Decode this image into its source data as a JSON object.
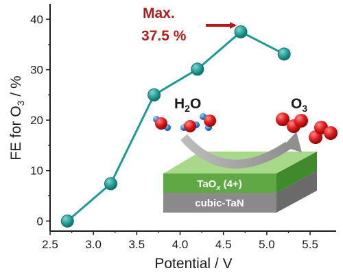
{
  "chart_data": {
    "type": "line",
    "x": [
      2.7,
      3.2,
      3.7,
      4.2,
      4.7,
      5.2
    ],
    "series": [
      {
        "values": [
          0,
          7.4,
          25,
          30.1,
          37.5,
          33.1
        ]
      }
    ],
    "title": "",
    "xlabel": "Potential / V",
    "ylabel_parts": [
      "FE for O",
      "3",
      " / %"
    ],
    "xlim": [
      2.5,
      5.8
    ],
    "ylim": [
      -2,
      43
    ],
    "xticks": [
      "2.5",
      "3.0",
      "3.5",
      "4.0",
      "4.5",
      "5.0",
      "5.5"
    ],
    "yticks": [
      "0",
      "10",
      "20",
      "30",
      "40"
    ],
    "grid": false,
    "legend": "none",
    "colors": {
      "line": "#1a9a94",
      "marker": "#2aa39e",
      "axis": "#1a1a1a",
      "annotation": "#b31b1b"
    },
    "annotations": {
      "max_line1": "Max.",
      "max_line2": "37.5 %",
      "water": [
        "H",
        "2",
        "O"
      ],
      "ozone": [
        "O",
        "3"
      ]
    },
    "inset": {
      "top_layer": [
        "TaO",
        "x",
        " (4+)"
      ],
      "bottom_layer": "cubic-TaN",
      "colors": {
        "top": "#5fa843",
        "bottom": "#8a8a8a"
      }
    }
  }
}
